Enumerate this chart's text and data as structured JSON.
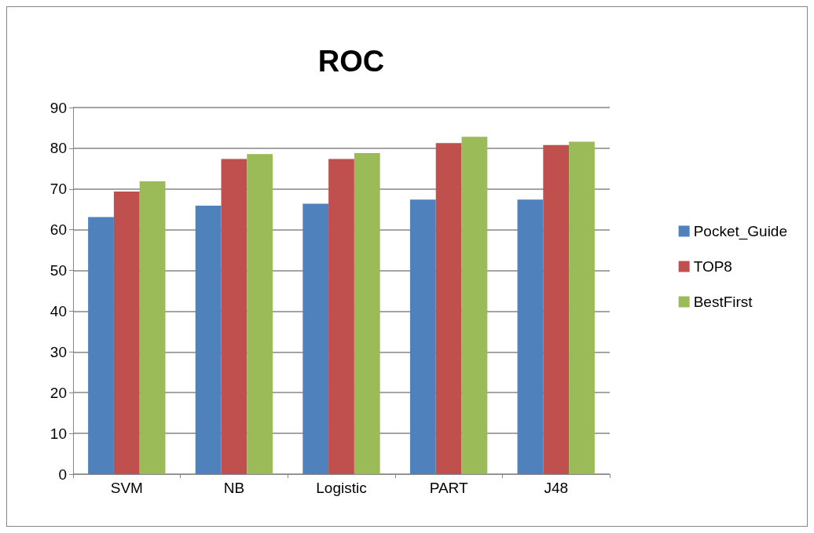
{
  "chart_data": {
    "type": "bar",
    "title": "ROC",
    "categories": [
      "SVM",
      "NB",
      "Logistic",
      "PART",
      "J48"
    ],
    "series": [
      {
        "name": "Pocket_Guide",
        "color": "#4f81bd",
        "values": [
          63.1,
          65.9,
          66.4,
          67.4,
          67.4
        ]
      },
      {
        "name": "TOP8",
        "color": "#c0504d",
        "values": [
          69.4,
          77.4,
          77.4,
          81.3,
          80.8
        ]
      },
      {
        "name": "BestFirst",
        "color": "#9bbb59",
        "values": [
          71.9,
          78.6,
          78.8,
          82.8,
          81.6
        ]
      }
    ],
    "ylim": [
      0,
      90
    ],
    "yticks": [
      0,
      10,
      20,
      30,
      40,
      50,
      60,
      70,
      80,
      90
    ],
    "grid": "y",
    "legend": "right"
  }
}
